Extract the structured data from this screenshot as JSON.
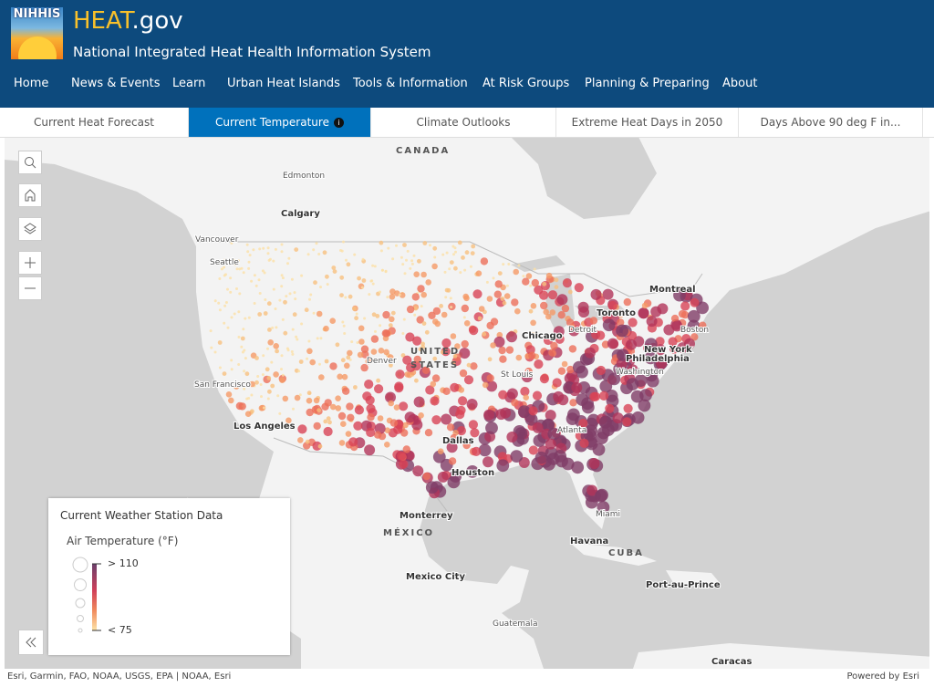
{
  "header": {
    "logo_text": "NIHHIS",
    "site_name": "HEAT",
    "site_domain": ".gov",
    "subtitle": "National Integrated Heat Health Information System"
  },
  "nav": [
    "Home",
    "News & Events",
    "Learn",
    "Urban Heat Islands",
    "Tools & Information",
    "At Risk Groups",
    "Planning & Preparing",
    "About"
  ],
  "tabs": [
    "Current Heat Forecast",
    "Current Temperature",
    "Climate Outlooks",
    "Extreme Heat Days in 2050",
    "Days Above 90 deg F in..."
  ],
  "map": {
    "labels": [
      "CANADA",
      "Edmonton",
      "Calgary",
      "Vancouver",
      "Seattle",
      "Montreal",
      "Toronto",
      "Chicago",
      "Detroit",
      "Boston",
      "New York",
      "Philadelphia",
      "Washington",
      "UNITED",
      "STATES",
      "Denver",
      "St Louis",
      "San Francisco",
      "Los Angeles",
      "Dallas",
      "Atlanta",
      "Houston",
      "Monterrey",
      "MÉXICO",
      "Miami",
      "Havana",
      "CUBA",
      "Mexico City",
      "Port-au-Prince",
      "Guatemala",
      "Caracas"
    ]
  },
  "legend": {
    "title": "Current Weather Station Data",
    "subtitle": "Air Temperature (°F)",
    "max_label": "> 110",
    "min_label": "< 75"
  },
  "attribution": "Esri, Garmin, FAO, NOAA, USGS, EPA | NOAA, Esri",
  "powered_by": "Powered by Esri"
}
